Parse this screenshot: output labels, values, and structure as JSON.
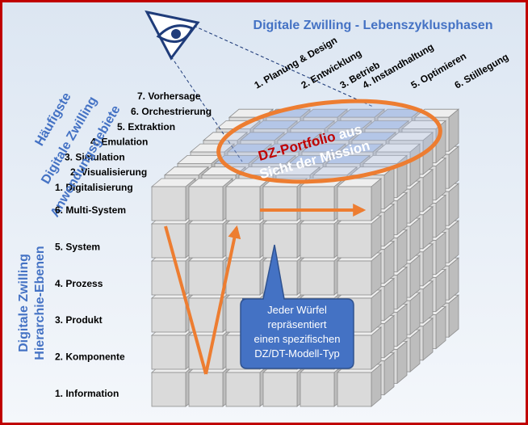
{
  "header": {
    "title": "Digitale Zwilling - Lebenszyklusphasen"
  },
  "phases": [
    "1. Planung & Design",
    "2. Entwicklung",
    "3. Betrieb",
    "4. Instandhaltung",
    "5. Optimieren",
    "6. Stilllegung"
  ],
  "applications": {
    "title": [
      "Häufigste",
      "Digitale Zwilling",
      "Anwendungsgebiete"
    ],
    "items": [
      "1. Digitalisierung",
      "2. Visualisierung",
      "3. Simulation",
      "4. Emulation",
      "5. Extraktion",
      "6. Orchestrierung",
      "7. Vorhersage"
    ]
  },
  "hierarchy": {
    "title": [
      "Digitale Zwilling",
      "Hierarchie-Ebenen"
    ],
    "items": [
      "1. Information",
      "2. Komponente",
      "3. Produkt",
      "4. Prozess",
      "5. System",
      "6. Multi-System"
    ]
  },
  "portfolio": {
    "highlight": "DZ-Portfolio",
    "rest": "aus",
    "line2": "Sicht der Mission"
  },
  "callout": [
    "Jeder Würfel",
    "repräsentiert",
    "einen spezifischen",
    "DZ/DT-Modell-Typ"
  ]
}
